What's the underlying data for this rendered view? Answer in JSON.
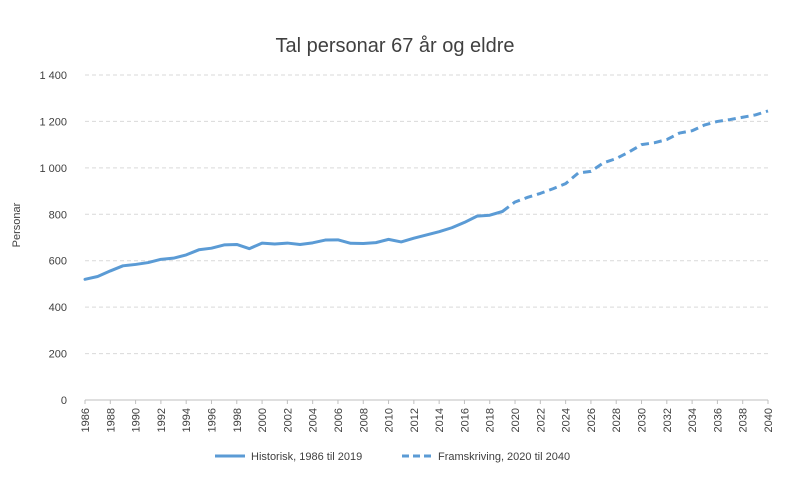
{
  "chart_data": {
    "type": "line",
    "title": "Tal personar 67 år og eldre",
    "xlabel": "",
    "ylabel": "Personar",
    "ylim": [
      0,
      1400
    ],
    "yticks": [
      0,
      200,
      400,
      600,
      800,
      1000,
      1200,
      1400
    ],
    "ytick_labels": [
      "0",
      "200",
      "400",
      "600",
      "800",
      "1 000",
      "1 200",
      "1 400"
    ],
    "xlim": [
      1986,
      2040
    ],
    "xticks": [
      1986,
      1988,
      1990,
      1992,
      1994,
      1996,
      1998,
      2000,
      2002,
      2004,
      2006,
      2008,
      2010,
      2012,
      2014,
      2016,
      2018,
      2020,
      2022,
      2024,
      2026,
      2028,
      2030,
      2032,
      2034,
      2036,
      2038,
      2040
    ],
    "grid": "horizontal, dashed",
    "legend_position": "bottom",
    "series_color": "#5B9BD5",
    "series": [
      {
        "name": "Historisk, 1986 til 2019",
        "style": "solid",
        "x": [
          1986,
          1987,
          1988,
          1989,
          1990,
          1991,
          1992,
          1993,
          1994,
          1995,
          1996,
          1997,
          1998,
          1999,
          2000,
          2001,
          2002,
          2003,
          2004,
          2005,
          2006,
          2007,
          2008,
          2009,
          2010,
          2011,
          2012,
          2013,
          2014,
          2015,
          2016,
          2017,
          2018,
          2019
        ],
        "y": [
          520,
          532,
          556,
          578,
          584,
          592,
          606,
          611,
          625,
          647,
          654,
          668,
          670,
          652,
          676,
          672,
          676,
          670,
          677,
          689,
          690,
          675,
          674,
          678,
          692,
          681,
          697,
          711,
          725,
          742,
          765,
          792,
          796,
          812
        ]
      },
      {
        "name": "Framskriving, 2020 til 2040",
        "style": "dashed",
        "x": [
          2019,
          2020,
          2021,
          2022,
          2023,
          2024,
          2025,
          2026,
          2027,
          2028,
          2029,
          2030,
          2031,
          2032,
          2033,
          2034,
          2035,
          2036,
          2037,
          2038,
          2039,
          2040
        ],
        "y": [
          812,
          853,
          873,
          890,
          910,
          932,
          978,
          985,
          1022,
          1040,
          1068,
          1100,
          1108,
          1122,
          1150,
          1160,
          1185,
          1200,
          1208,
          1218,
          1228,
          1245
        ]
      }
    ]
  }
}
